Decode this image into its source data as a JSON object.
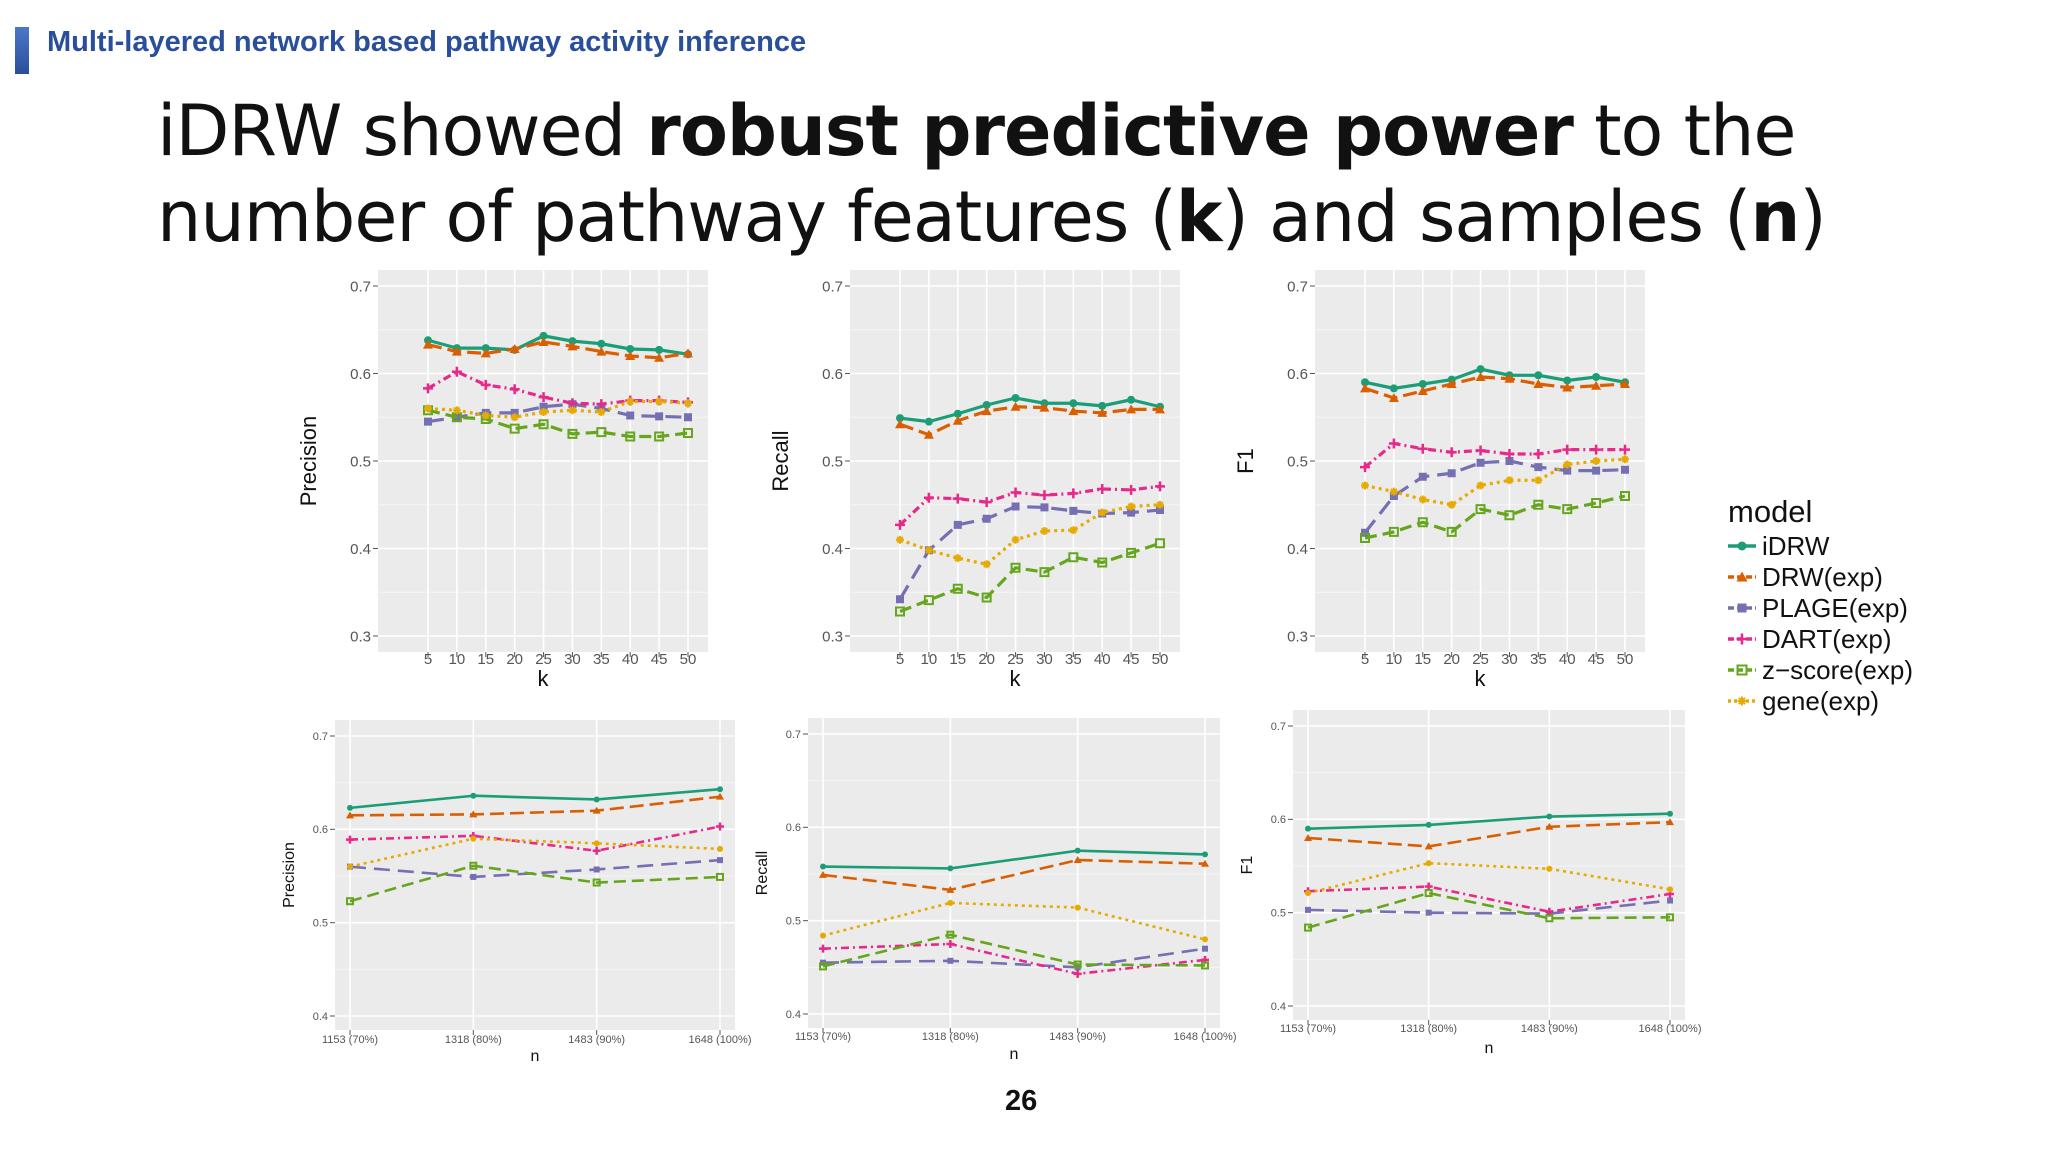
{
  "header": {
    "section_title": "Multi-layered network based pathway activity inference"
  },
  "slide": {
    "title_parts": [
      {
        "text": "iDRW",
        "bold": false
      },
      {
        "text": " showed ",
        "bold": false,
        "thin": true
      },
      {
        "text": "robust predictive power",
        "bold": true
      },
      {
        "text": " to the number of pathway features (",
        "bold": false,
        "thin": true
      },
      {
        "text": "k",
        "bold": true
      },
      {
        "text": ") and samples (",
        "bold": false,
        "thin": true
      },
      {
        "text": "n",
        "bold": true
      },
      {
        "text": ")",
        "bold": false,
        "thin": true
      }
    ],
    "page_number": "26"
  },
  "legend": {
    "title": "model",
    "entries": [
      "iDRW",
      "DRW(exp)",
      "PLAGE(exp)",
      "DART(exp)",
      "z−score(exp)",
      "gene(exp)"
    ]
  },
  "colors": {
    "iDRW": "#1b9e77",
    "DRW(exp)": "#d95f02",
    "PLAGE(exp)": "#7570b3",
    "DART(exp)": "#e7298a",
    "z−score(exp)": "#66a61e",
    "gene(exp)": "#e6ab02",
    "panel_bg": "#ebebeb",
    "grid": "#ffffff"
  },
  "chart_data": [
    {
      "type": "line",
      "xlabel": "k",
      "ylabel": "Precision",
      "ylim": [
        0.3,
        0.7
      ],
      "yticks": [
        "0.3",
        "0.4",
        "0.5",
        "0.6",
        "0.7"
      ],
      "x": [
        "5",
        "10",
        "15",
        "20",
        "25",
        "30",
        "35",
        "40",
        "45",
        "50"
      ],
      "series": [
        {
          "name": "iDRW",
          "values": [
            0.638,
            0.629,
            0.629,
            0.627,
            0.643,
            0.637,
            0.634,
            0.628,
            0.627,
            0.622
          ]
        },
        {
          "name": "DRW(exp)",
          "values": [
            0.633,
            0.625,
            0.623,
            0.628,
            0.636,
            0.631,
            0.625,
            0.62,
            0.618,
            0.623
          ]
        },
        {
          "name": "PLAGE(exp)",
          "values": [
            0.545,
            0.55,
            0.555,
            0.555,
            0.562,
            0.565,
            0.56,
            0.552,
            0.551,
            0.55
          ]
        },
        {
          "name": "DART(exp)",
          "values": [
            0.583,
            0.602,
            0.587,
            0.582,
            0.573,
            0.566,
            0.565,
            0.569,
            0.569,
            0.567
          ]
        },
        {
          "name": "z−score(exp)",
          "values": [
            0.558,
            0.55,
            0.548,
            0.537,
            0.542,
            0.531,
            0.533,
            0.528,
            0.528,
            0.532
          ]
        },
        {
          "name": "gene(exp)",
          "values": [
            0.56,
            0.558,
            0.552,
            0.55,
            0.556,
            0.558,
            0.556,
            0.568,
            0.568,
            0.566
          ]
        }
      ]
    },
    {
      "type": "line",
      "xlabel": "k",
      "ylabel": "Recall",
      "ylim": [
        0.3,
        0.7
      ],
      "yticks": [
        "0.3",
        "0.4",
        "0.5",
        "0.6",
        "0.7"
      ],
      "x": [
        "5",
        "10",
        "15",
        "20",
        "25",
        "30",
        "35",
        "40",
        "45",
        "50"
      ],
      "series": [
        {
          "name": "iDRW",
          "values": [
            0.549,
            0.545,
            0.554,
            0.564,
            0.572,
            0.566,
            0.566,
            0.563,
            0.57,
            0.562
          ]
        },
        {
          "name": "DRW(exp)",
          "values": [
            0.542,
            0.53,
            0.546,
            0.557,
            0.562,
            0.561,
            0.557,
            0.555,
            0.559,
            0.559
          ]
        },
        {
          "name": "PLAGE(exp)",
          "values": [
            0.342,
            0.398,
            0.427,
            0.434,
            0.448,
            0.447,
            0.443,
            0.44,
            0.441,
            0.444
          ]
        },
        {
          "name": "DART(exp)",
          "values": [
            0.427,
            0.458,
            0.457,
            0.453,
            0.464,
            0.461,
            0.463,
            0.468,
            0.467,
            0.471
          ]
        },
        {
          "name": "z−score(exp)",
          "values": [
            0.328,
            0.341,
            0.354,
            0.344,
            0.378,
            0.373,
            0.39,
            0.384,
            0.395,
            0.406
          ]
        },
        {
          "name": "gene(exp)",
          "values": [
            0.41,
            0.398,
            0.389,
            0.382,
            0.41,
            0.42,
            0.421,
            0.441,
            0.448,
            0.45
          ]
        }
      ]
    },
    {
      "type": "line",
      "xlabel": "k",
      "ylabel": "F1",
      "ylim": [
        0.3,
        0.7
      ],
      "yticks": [
        "0.3",
        "0.4",
        "0.5",
        "0.6",
        "0.7"
      ],
      "x": [
        "5",
        "10",
        "15",
        "20",
        "25",
        "30",
        "35",
        "40",
        "45",
        "50"
      ],
      "series": [
        {
          "name": "iDRW",
          "values": [
            0.59,
            0.583,
            0.588,
            0.593,
            0.605,
            0.598,
            0.598,
            0.592,
            0.596,
            0.59
          ]
        },
        {
          "name": "DRW(exp)",
          "values": [
            0.583,
            0.572,
            0.58,
            0.588,
            0.596,
            0.594,
            0.588,
            0.584,
            0.586,
            0.588
          ]
        },
        {
          "name": "PLAGE(exp)",
          "values": [
            0.418,
            0.46,
            0.482,
            0.486,
            0.498,
            0.5,
            0.493,
            0.489,
            0.489,
            0.49
          ]
        },
        {
          "name": "DART(exp)",
          "values": [
            0.493,
            0.52,
            0.514,
            0.51,
            0.512,
            0.508,
            0.508,
            0.513,
            0.513,
            0.513
          ]
        },
        {
          "name": "z−score(exp)",
          "values": [
            0.412,
            0.419,
            0.43,
            0.419,
            0.445,
            0.438,
            0.45,
            0.445,
            0.452,
            0.46
          ]
        },
        {
          "name": "gene(exp)",
          "values": [
            0.472,
            0.465,
            0.456,
            0.45,
            0.472,
            0.478,
            0.478,
            0.496,
            0.5,
            0.502
          ]
        }
      ]
    },
    {
      "type": "line",
      "xlabel": "n",
      "ylabel": "Precision",
      "ylim": [
        0.4,
        0.7
      ],
      "yticks": [
        "0.4",
        "0.5",
        "0.6",
        "0.7"
      ],
      "x": [
        "1153 (70%)",
        "1318 (80%)",
        "1483 (90%)",
        "1648 (100%)"
      ],
      "series": [
        {
          "name": "iDRW",
          "values": [
            0.623,
            0.636,
            0.632,
            0.643
          ]
        },
        {
          "name": "DRW(exp)",
          "values": [
            0.615,
            0.616,
            0.62,
            0.635
          ]
        },
        {
          "name": "PLAGE(exp)",
          "values": [
            0.56,
            0.549,
            0.557,
            0.567
          ]
        },
        {
          "name": "DART(exp)",
          "values": [
            0.589,
            0.593,
            0.577,
            0.603
          ]
        },
        {
          "name": "z−score(exp)",
          "values": [
            0.523,
            0.561,
            0.543,
            0.549
          ]
        },
        {
          "name": "gene(exp)",
          "values": [
            0.56,
            0.59,
            0.585,
            0.579
          ]
        }
      ]
    },
    {
      "type": "line",
      "xlabel": "n",
      "ylabel": "Recall",
      "ylim": [
        0.4,
        0.7
      ],
      "yticks": [
        "0.4",
        "0.5",
        "0.6",
        "0.7"
      ],
      "x": [
        "1153 (70%)",
        "1318 (80%)",
        "1483 (90%)",
        "1648 (100%)"
      ],
      "series": [
        {
          "name": "iDRW",
          "values": [
            0.558,
            0.556,
            0.575,
            0.571
          ]
        },
        {
          "name": "DRW(exp)",
          "values": [
            0.549,
            0.533,
            0.565,
            0.561
          ]
        },
        {
          "name": "PLAGE(exp)",
          "values": [
            0.455,
            0.457,
            0.45,
            0.47
          ]
        },
        {
          "name": "DART(exp)",
          "values": [
            0.47,
            0.475,
            0.443,
            0.458
          ]
        },
        {
          "name": "z−score(exp)",
          "values": [
            0.451,
            0.485,
            0.453,
            0.452
          ]
        },
        {
          "name": "gene(exp)",
          "values": [
            0.484,
            0.519,
            0.514,
            0.48
          ]
        }
      ]
    },
    {
      "type": "line",
      "xlabel": "n",
      "ylabel": "F1",
      "ylim": [
        0.4,
        0.7
      ],
      "yticks": [
        "0.4",
        "0.5",
        "0.6",
        "0.7"
      ],
      "x": [
        "1153 (70%)",
        "1318 (80%)",
        "1483 (90%)",
        "1648 (100%)"
      ],
      "series": [
        {
          "name": "iDRW",
          "values": [
            0.59,
            0.594,
            0.603,
            0.606
          ]
        },
        {
          "name": "DRW(exp)",
          "values": [
            0.58,
            0.571,
            0.592,
            0.597
          ]
        },
        {
          "name": "PLAGE(exp)",
          "values": [
            0.503,
            0.5,
            0.499,
            0.513
          ]
        },
        {
          "name": "DART(exp)",
          "values": [
            0.523,
            0.528,
            0.501,
            0.52
          ]
        },
        {
          "name": "z−score(exp)",
          "values": [
            0.484,
            0.521,
            0.494,
            0.495
          ]
        },
        {
          "name": "gene(exp)",
          "values": [
            0.521,
            0.553,
            0.547,
            0.525
          ]
        }
      ]
    }
  ]
}
